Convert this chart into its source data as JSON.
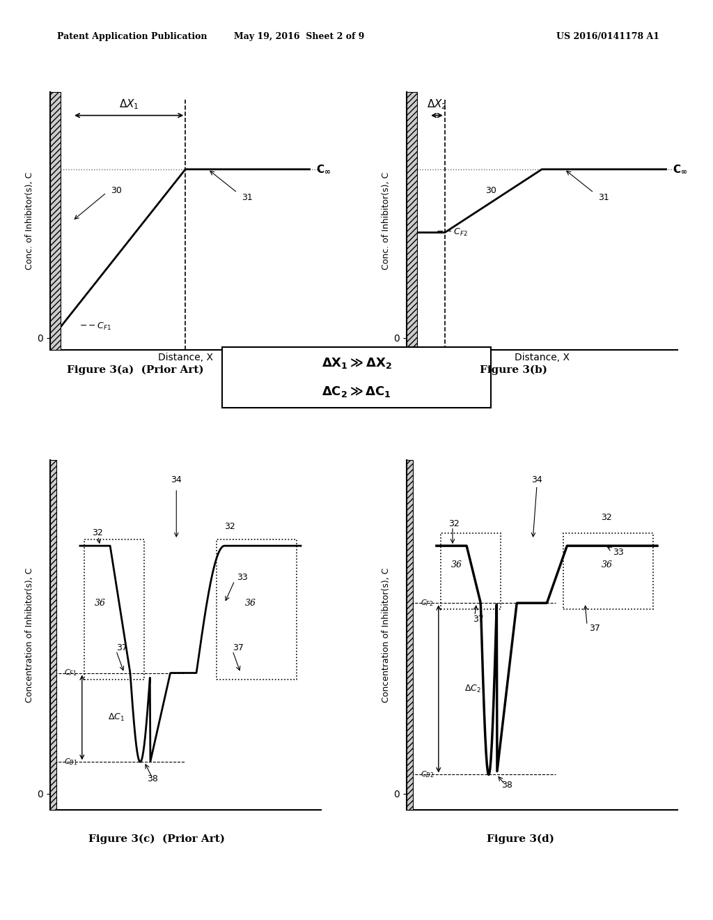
{
  "header_left": "Patent Application Publication",
  "header_center": "May 19, 2016  Sheet 2 of 9",
  "header_right": "US 2016/0141178 A1",
  "fig3a_title": "Figure 3(a)  (Prior Art)",
  "fig3b_title": "Figure 3(b)",
  "fig3c_title": "Figure 3(c)  (Prior Art)",
  "fig3d_title": "Figure 3(d)",
  "equation_line1": "ΔX₁ » ΔX₂",
  "equation_line2": "ΔC₂ » ΔC₁",
  "ylabel_top": "Conc. of Inhibitor(s), C",
  "ylabel_bottom": "Concentration of Inhibitor(s), C",
  "xlabel": "Distance, X",
  "bg_color": "#ffffff",
  "line_color": "#000000",
  "hatching_color": "#888888"
}
